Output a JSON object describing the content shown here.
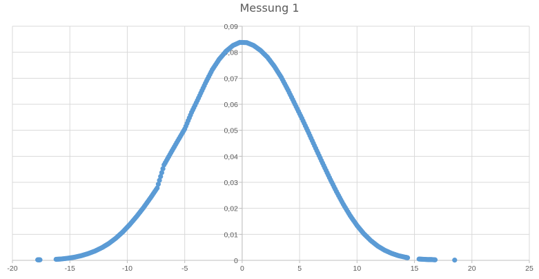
{
  "chart_data": {
    "type": "scatter",
    "title": "Messung 1",
    "xlabel": "",
    "ylabel": "",
    "xlim": [
      -20,
      25
    ],
    "ylim": [
      0,
      0.09
    ],
    "x_ticks": [
      -20,
      -15,
      -10,
      -5,
      0,
      5,
      10,
      15,
      20,
      25
    ],
    "x_tick_labels": [
      "-20",
      "-15",
      "-10",
      "-5",
      "0",
      "5",
      "10",
      "15",
      "20",
      "25"
    ],
    "y_ticks": [
      0,
      0.01,
      0.02,
      0.03,
      0.04,
      0.05,
      0.06,
      0.07,
      0.08,
      0.09
    ],
    "y_tick_labels": [
      "0",
      "0,01",
      "0,02",
      "0,03",
      "0,04",
      "0,05",
      "0,06",
      "0,07",
      "0,08",
      "0,09"
    ],
    "grid": true,
    "legend": "none",
    "marker_color": "#5B9BD5",
    "grid_color": "#D9D9D9",
    "axis_color": "#BFBFBF",
    "series": [
      {
        "x": [
          -17.8,
          -17.6,
          -16.2,
          -15.8,
          -15.2,
          -14.6,
          -14.0,
          -13.4,
          -12.8,
          -12.2,
          -11.6,
          -11.0,
          -10.4,
          -9.8,
          -9.2,
          -8.6,
          -8.0,
          -7.4,
          -6.8,
          -6.2,
          -5.6,
          -5.0,
          -4.4,
          -3.8,
          -3.2,
          -2.6,
          -2.0,
          -1.4,
          -0.8,
          -0.2,
          0.4,
          1.0,
          1.6,
          2.2,
          2.8,
          3.4,
          4.0,
          4.6,
          5.2,
          5.8,
          6.4,
          7.0,
          7.6,
          8.2,
          8.8,
          9.4,
          10.0,
          10.6,
          11.2,
          11.8,
          12.4,
          13.0,
          13.6,
          14.2,
          14.4,
          15.4,
          15.8,
          16.2,
          16.5,
          16.8,
          18.5
        ],
        "y": [
          0.0002,
          0.0002,
          0.0004,
          0.0005,
          0.0008,
          0.0012,
          0.0018,
          0.0026,
          0.0036,
          0.0049,
          0.0065,
          0.0085,
          0.0109,
          0.0137,
          0.0168,
          0.0202,
          0.0239,
          0.0278,
          0.0367,
          0.0414,
          0.046,
          0.0505,
          0.0569,
          0.0624,
          0.0681,
          0.0733,
          0.0773,
          0.0804,
          0.0826,
          0.0838,
          0.0837,
          0.0826,
          0.0807,
          0.0781,
          0.0746,
          0.0704,
          0.0654,
          0.06,
          0.0546,
          0.0489,
          0.0431,
          0.0374,
          0.0318,
          0.0265,
          0.0216,
          0.0172,
          0.0134,
          0.0102,
          0.0076,
          0.0055,
          0.0039,
          0.0027,
          0.0018,
          0.0012,
          0.001,
          0.0005,
          0.0004,
          0.0003,
          0.0003,
          0.0002,
          0.0001
        ]
      }
    ]
  }
}
